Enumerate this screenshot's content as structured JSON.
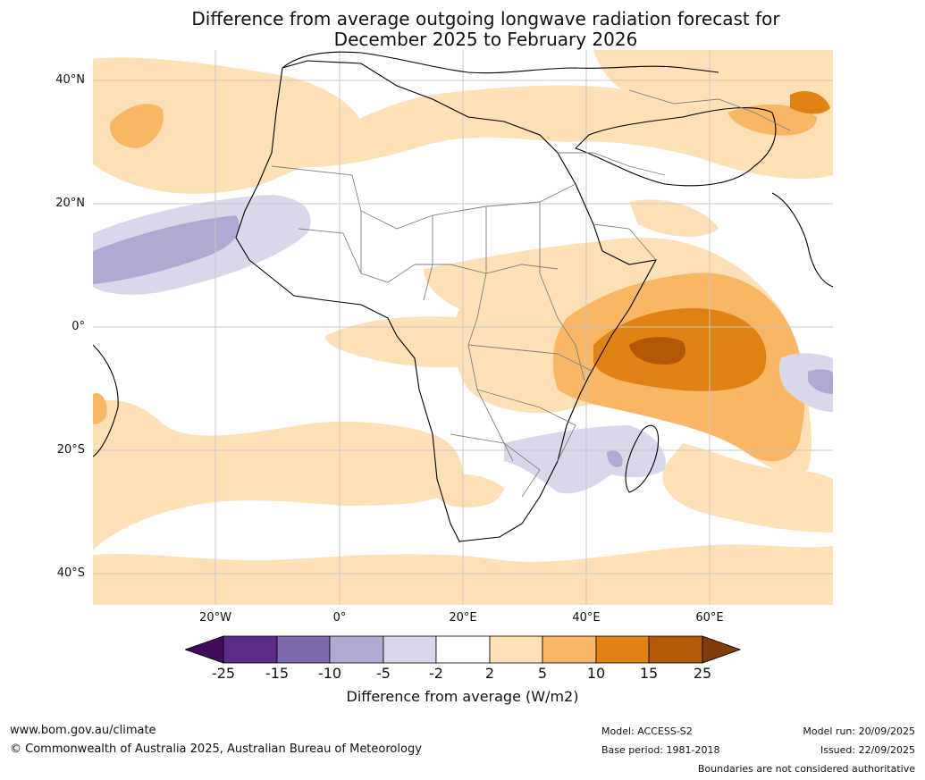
{
  "title_line1": "Difference from average outgoing longwave radiation forecast for",
  "title_line2": "December 2025 to February 2026",
  "map": {
    "lat_labels": [
      "40°N",
      "20°N",
      "0°",
      "20°S",
      "40°S"
    ],
    "lon_labels": [
      "20°W",
      "0°",
      "20°E",
      "40°E",
      "60°E"
    ],
    "colors": {
      "land_border": "#808080",
      "coast": "#000000",
      "grid": "#c8c8c8"
    }
  },
  "colorbar": {
    "ticks": [
      "-25",
      "-15",
      "-10",
      "-5",
      "-2",
      "2",
      "5",
      "10",
      "15",
      "25"
    ],
    "colors": [
      "#3f0c5c",
      "#5a2b88",
      "#7f6aac",
      "#b1a9d1",
      "#d8d8ea",
      "#ffffff",
      "#fde0b6",
      "#f9b665",
      "#e08214",
      "#b35806",
      "#7f3b08"
    ],
    "label": "Difference from average (W/m2)"
  },
  "footer": {
    "url": "www.bom.gov.au/climate",
    "copyright": "© Commonwealth of Australia 2025, Australian Bureau of Meteorology",
    "model": "Model: ACCESS-S2",
    "base_period": "Base period: 1981-2018",
    "model_run": "Model run: 20/09/2025",
    "issued": "Issued: 22/09/2025",
    "disclaimer": "Boundaries are not considered authoritative"
  }
}
